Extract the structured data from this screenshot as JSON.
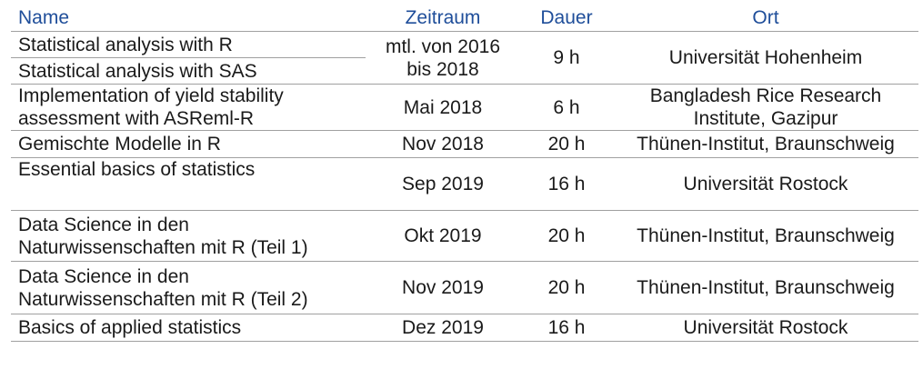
{
  "header": {
    "name": "Name",
    "period": "Zeitraum",
    "duration": "Dauer",
    "location": "Ort"
  },
  "rows": [
    {
      "name": "Statistical analysis with R",
      "period": "mtl. von 2016 bis 2018",
      "duration": "9 h",
      "location": "Universität Hohenheim"
    },
    {
      "name": "Statistical analysis with SAS"
    },
    {
      "name": "Implementation of yield stability assessment with ASReml-R",
      "period": "Mai 2018",
      "duration": "6 h",
      "location": "Bangladesh Rice Research Institute, Gazipur"
    },
    {
      "name": "Gemischte Modelle in R",
      "period": "Nov 2018",
      "duration": "20 h",
      "location": "Thünen-Institut, Braunschweig"
    },
    {
      "name": "Essential basics of statistics",
      "period": "Sep 2019",
      "duration": "16 h",
      "location": "Universität Rostock"
    },
    {
      "name": "Data Science in den Naturwissenschaften mit R (Teil 1)",
      "period": "Okt 2019",
      "duration": "20 h",
      "location": "Thünen-Institut, Braunschweig"
    },
    {
      "name": "Data Science in den Naturwissenschaften mit R (Teil 2)",
      "period": "Nov 2019",
      "duration": "20 h",
      "location": "Thünen-Institut, Braunschweig"
    },
    {
      "name": "Basics of applied statistics",
      "period": "Dez 2019",
      "duration": "16 h",
      "location": "Universität Rostock"
    }
  ]
}
